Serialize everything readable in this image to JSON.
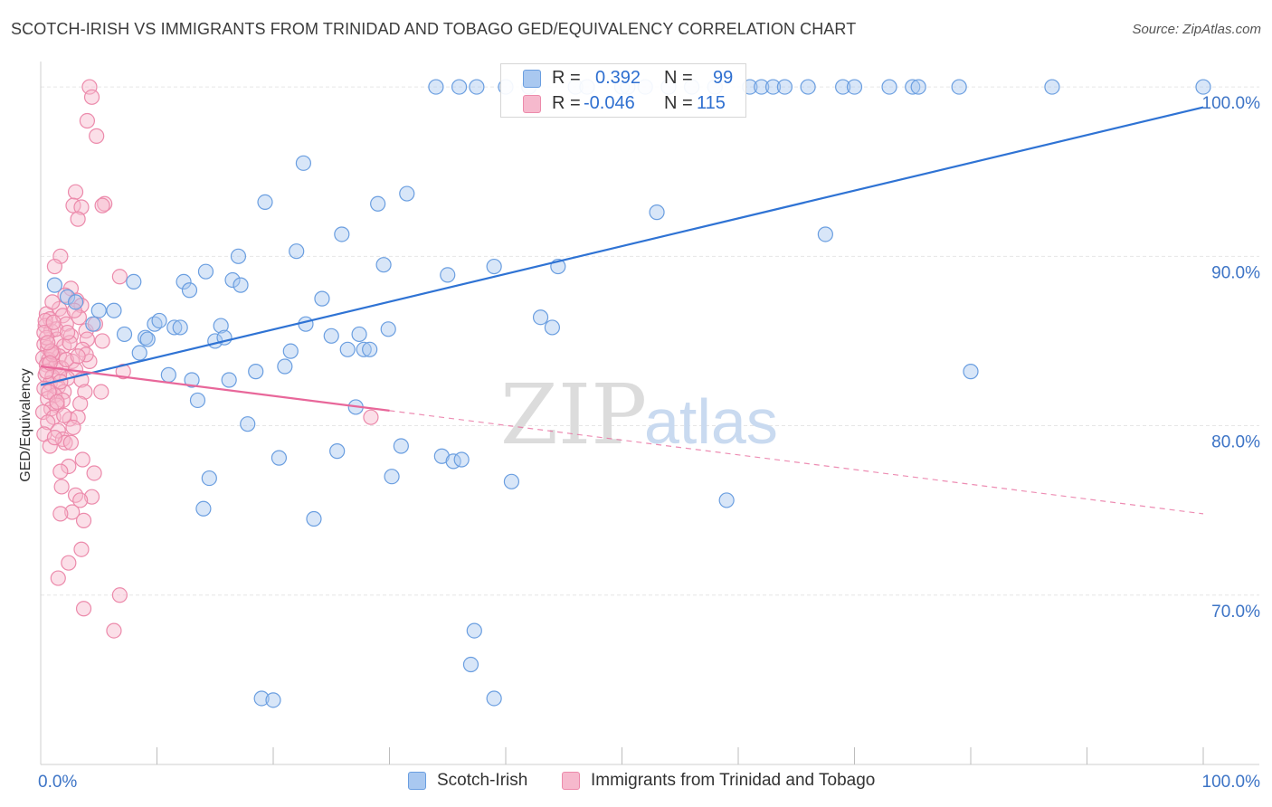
{
  "title": "SCOTCH-IRISH VS IMMIGRANTS FROM TRINIDAD AND TOBAGO GED/EQUIVALENCY CORRELATION CHART",
  "source": "Source: ZipAtlas.com",
  "watermark": {
    "zip": "ZIP",
    "atlas": "atlas"
  },
  "legend": {
    "series1": {
      "r_label": "R =",
      "r_value": "0.392",
      "n_label": "N =",
      "n_value": "99"
    },
    "series2": {
      "r_label": "R =",
      "r_value": "-0.046",
      "n_label": "N =",
      "n_value": "115"
    }
  },
  "colors": {
    "blue_fill": "#a9c8f0",
    "blue_stroke": "#6a9ee0",
    "blue_line": "#2f73d4",
    "pink_fill": "#f6b9cd",
    "pink_stroke": "#ec8aab",
    "pink_line": "#e8679a",
    "axis_label": "#3d74c6",
    "grid": "#e6e6e6"
  },
  "chart_data": {
    "type": "scatter",
    "title": "SCOTCH-IRISH VS IMMIGRANTS FROM TRINIDAD AND TOBAGO GED/EQUIVALENCY CORRELATION CHART",
    "xlabel": "",
    "ylabel": "GED/Equivalency",
    "xlim": [
      0,
      100
    ],
    "ylim": [
      60.0,
      101.5
    ],
    "x_tick_labels": [
      "0.0%",
      "100.0%"
    ],
    "y_ticks": [
      70,
      80,
      90,
      100
    ],
    "y_tick_labels": [
      "70.0%",
      "80.0%",
      "90.0%",
      "100.0%"
    ],
    "legend_position": "top-center",
    "series": [
      {
        "name": "Scotch-Irish",
        "color": "#a9c8f0",
        "R": 0.392,
        "N": 99,
        "trend": {
          "x": [
            0,
            100
          ],
          "y": [
            82.4,
            98.8
          ],
          "dashed_from": null
        },
        "points": [
          [
            1.2,
            88.3
          ],
          [
            2.3,
            87.6
          ],
          [
            3.0,
            87.3
          ],
          [
            4.5,
            86.0
          ],
          [
            5.0,
            86.8
          ],
          [
            6.3,
            86.8
          ],
          [
            7.2,
            85.4
          ],
          [
            8.5,
            84.3
          ],
          [
            8.0,
            88.5
          ],
          [
            9.0,
            85.2
          ],
          [
            9.2,
            85.1
          ],
          [
            9.8,
            86.0
          ],
          [
            10.2,
            86.2
          ],
          [
            11.0,
            83.0
          ],
          [
            11.5,
            85.8
          ],
          [
            12.0,
            85.8
          ],
          [
            12.3,
            88.5
          ],
          [
            12.8,
            88.0
          ],
          [
            13.0,
            82.7
          ],
          [
            14.2,
            89.1
          ],
          [
            13.5,
            81.5
          ],
          [
            14.0,
            75.1
          ],
          [
            14.5,
            76.9
          ],
          [
            15.0,
            85.0
          ],
          [
            15.5,
            85.9
          ],
          [
            15.8,
            85.2
          ],
          [
            16.2,
            82.7
          ],
          [
            16.5,
            88.6
          ],
          [
            17.0,
            90.0
          ],
          [
            17.2,
            88.3
          ],
          [
            17.8,
            80.1
          ],
          [
            18.5,
            83.2
          ],
          [
            19.0,
            63.9
          ],
          [
            19.3,
            93.2
          ],
          [
            20.0,
            63.8
          ],
          [
            20.5,
            78.1
          ],
          [
            21.0,
            83.5
          ],
          [
            21.5,
            84.4
          ],
          [
            22.0,
            90.3
          ],
          [
            22.6,
            95.5
          ],
          [
            22.8,
            86.0
          ],
          [
            23.5,
            74.5
          ],
          [
            24.2,
            87.5
          ],
          [
            25.0,
            85.3
          ],
          [
            25.5,
            78.5
          ],
          [
            25.9,
            91.3
          ],
          [
            26.4,
            84.5
          ],
          [
            27.1,
            81.1
          ],
          [
            27.4,
            85.4
          ],
          [
            27.8,
            84.5
          ],
          [
            28.3,
            84.5
          ],
          [
            29.0,
            93.1
          ],
          [
            29.5,
            89.5
          ],
          [
            29.9,
            85.7
          ],
          [
            30.2,
            77.0
          ],
          [
            31.0,
            78.8
          ],
          [
            31.5,
            93.7
          ],
          [
            34.0,
            100.0
          ],
          [
            34.5,
            78.2
          ],
          [
            35.0,
            88.9
          ],
          [
            35.5,
            77.9
          ],
          [
            36.0,
            100.0
          ],
          [
            36.2,
            78.0
          ],
          [
            37.5,
            100.0
          ],
          [
            37.3,
            67.9
          ],
          [
            37.0,
            65.9
          ],
          [
            39.0,
            89.4
          ],
          [
            39.0,
            63.9
          ],
          [
            40.0,
            100.0
          ],
          [
            40.5,
            76.7
          ],
          [
            42.0,
            100.0
          ],
          [
            43.0,
            86.4
          ],
          [
            44.0,
            85.8
          ],
          [
            44.5,
            89.4
          ],
          [
            46.0,
            100.0
          ],
          [
            47.0,
            100.0
          ],
          [
            50.0,
            100.0
          ],
          [
            50.5,
            100.0
          ],
          [
            52.0,
            100.0
          ],
          [
            53.0,
            92.6
          ],
          [
            54.0,
            100.0
          ],
          [
            56.0,
            100.0
          ],
          [
            58.0,
            100.0
          ],
          [
            59.0,
            75.6
          ],
          [
            61.0,
            100.0
          ],
          [
            62.0,
            100.0
          ],
          [
            63.0,
            100.0
          ],
          [
            64.0,
            100.0
          ],
          [
            66.0,
            100.0
          ],
          [
            67.5,
            91.3
          ],
          [
            69.0,
            100.0
          ],
          [
            70.0,
            100.0
          ],
          [
            73.0,
            100.0
          ],
          [
            75.0,
            100.0
          ],
          [
            75.5,
            100.0
          ],
          [
            79.0,
            100.0
          ],
          [
            87.0,
            100.0
          ],
          [
            100.0,
            100.0
          ],
          [
            80.0,
            83.2
          ]
        ]
      },
      {
        "name": "Immigrants from Trinidad and Tobago",
        "color": "#f6b9cd",
        "R": -0.046,
        "N": 115,
        "trend": {
          "x": [
            0,
            100
          ],
          "y": [
            83.5,
            74.8
          ],
          "dashed_from": 30
        },
        "points": [
          [
            4.2,
            100.0
          ],
          [
            4.4,
            99.4
          ],
          [
            4.0,
            98.0
          ],
          [
            4.8,
            97.1
          ],
          [
            3.0,
            93.8
          ],
          [
            2.8,
            93.0
          ],
          [
            3.5,
            92.9
          ],
          [
            3.2,
            92.2
          ],
          [
            5.5,
            93.1
          ],
          [
            5.3,
            93.0
          ],
          [
            1.7,
            90.0
          ],
          [
            1.2,
            89.4
          ],
          [
            6.8,
            88.8
          ],
          [
            2.6,
            88.1
          ],
          [
            2.1,
            87.7
          ],
          [
            3.1,
            87.4
          ],
          [
            3.5,
            87.1
          ],
          [
            1.6,
            86.9
          ],
          [
            0.5,
            86.6
          ],
          [
            0.8,
            86.3
          ],
          [
            1.9,
            86.5
          ],
          [
            3.3,
            86.4
          ],
          [
            2.2,
            86.0
          ],
          [
            0.4,
            85.9
          ],
          [
            0.9,
            85.6
          ],
          [
            3.9,
            85.6
          ],
          [
            2.6,
            85.3
          ],
          [
            1.4,
            85.1
          ],
          [
            4.0,
            85.1
          ],
          [
            5.3,
            85.0
          ],
          [
            0.3,
            84.8
          ],
          [
            0.6,
            84.6
          ],
          [
            2.0,
            84.7
          ],
          [
            3.6,
            84.5
          ],
          [
            1.1,
            84.3
          ],
          [
            1.6,
            84.1
          ],
          [
            0.2,
            84.0
          ],
          [
            0.7,
            83.9
          ],
          [
            2.7,
            83.8
          ],
          [
            4.2,
            83.8
          ],
          [
            0.5,
            83.6
          ],
          [
            1.3,
            83.5
          ],
          [
            1.8,
            83.4
          ],
          [
            3.0,
            83.3
          ],
          [
            7.1,
            83.2
          ],
          [
            0.4,
            83.0
          ],
          [
            1.0,
            82.9
          ],
          [
            2.3,
            82.8
          ],
          [
            3.5,
            82.7
          ],
          [
            0.8,
            82.5
          ],
          [
            1.5,
            82.3
          ],
          [
            0.3,
            82.2
          ],
          [
            2.0,
            82.0
          ],
          [
            3.8,
            82.0
          ],
          [
            5.2,
            82.0
          ],
          [
            1.2,
            81.8
          ],
          [
            0.6,
            81.6
          ],
          [
            1.9,
            81.5
          ],
          [
            1.4,
            81.2
          ],
          [
            0.9,
            81.0
          ],
          [
            0.2,
            80.8
          ],
          [
            1.1,
            80.5
          ],
          [
            2.5,
            80.4
          ],
          [
            3.2,
            80.5
          ],
          [
            0.6,
            80.2
          ],
          [
            2.8,
            79.9
          ],
          [
            1.5,
            79.7
          ],
          [
            0.3,
            79.5
          ],
          [
            1.9,
            79.2
          ],
          [
            2.1,
            79.0
          ],
          [
            0.8,
            78.8
          ],
          [
            3.6,
            78.0
          ],
          [
            2.4,
            77.6
          ],
          [
            4.6,
            77.2
          ],
          [
            1.7,
            77.3
          ],
          [
            1.8,
            76.4
          ],
          [
            3.0,
            75.9
          ],
          [
            4.4,
            75.8
          ],
          [
            3.4,
            75.6
          ],
          [
            2.7,
            74.9
          ],
          [
            1.7,
            74.8
          ],
          [
            3.7,
            74.4
          ],
          [
            3.5,
            72.7
          ],
          [
            2.4,
            71.9
          ],
          [
            1.5,
            71.0
          ],
          [
            6.8,
            70.0
          ],
          [
            3.7,
            69.2
          ],
          [
            6.3,
            67.9
          ],
          [
            1.0,
            84.2
          ],
          [
            1.3,
            85.7
          ],
          [
            2.5,
            84.9
          ],
          [
            0.5,
            85.2
          ],
          [
            0.9,
            84.4
          ],
          [
            1.6,
            83.0
          ],
          [
            2.2,
            83.9
          ],
          [
            0.4,
            86.2
          ],
          [
            1.0,
            87.3
          ],
          [
            2.9,
            86.8
          ],
          [
            0.7,
            82.0
          ],
          [
            3.4,
            81.3
          ],
          [
            1.4,
            81.4
          ],
          [
            2.0,
            80.6
          ],
          [
            0.5,
            83.2
          ],
          [
            1.7,
            82.6
          ],
          [
            2.3,
            85.5
          ],
          [
            3.9,
            84.2
          ],
          [
            0.8,
            83.7
          ],
          [
            1.2,
            79.3
          ],
          [
            2.6,
            79.0
          ],
          [
            0.3,
            85.5
          ],
          [
            28.4,
            80.5
          ],
          [
            4.7,
            86.0
          ],
          [
            1.1,
            86.1
          ],
          [
            0.6,
            84.9
          ],
          [
            3.2,
            84.1
          ]
        ]
      }
    ]
  },
  "bottom_legend": {
    "item1": "Scotch-Irish",
    "item2": "Immigrants from Trinidad and Tobago"
  }
}
